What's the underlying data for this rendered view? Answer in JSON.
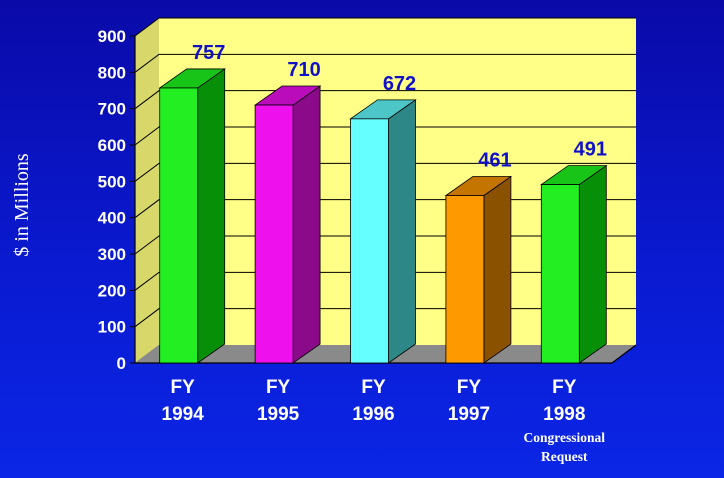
{
  "chart_data": {
    "type": "bar",
    "title": "",
    "xlabel": "",
    "ylabel": "$ in Millions",
    "ylim": [
      0,
      900
    ],
    "yticks": [
      0,
      100,
      200,
      300,
      400,
      500,
      600,
      700,
      800,
      900
    ],
    "grid": true,
    "categories": [
      {
        "line1": "FY",
        "line2": "1994",
        "note": ""
      },
      {
        "line1": "FY",
        "line2": "1995",
        "note": ""
      },
      {
        "line1": "FY",
        "line2": "1996",
        "note": ""
      },
      {
        "line1": "FY",
        "line2": "1997",
        "note": ""
      },
      {
        "line1": "FY",
        "line2": "1998",
        "note": "Congressional Request"
      }
    ],
    "values": [
      757,
      710,
      672,
      461,
      491
    ],
    "data_labels": [
      "757",
      "710",
      "672",
      "461",
      "491"
    ],
    "colors": [
      "#22ee22",
      "#ee11ee",
      "#66ffff",
      "#ff9900",
      "#22ee22"
    ],
    "side_colors": [
      "#079007",
      "#8a0a8a",
      "#2e8787",
      "#8a5200",
      "#079007"
    ],
    "top_colors": [
      "#17c417",
      "#bb0cbb",
      "#4cc6c6",
      "#c47500",
      "#17c417"
    ],
    "plot_colors": {
      "wall": "#ffff88",
      "floor": "#8a8a8a",
      "grid": "#000000"
    }
  }
}
